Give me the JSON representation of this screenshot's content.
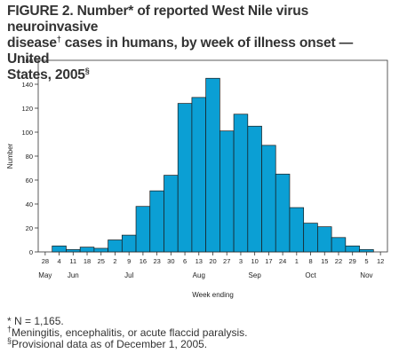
{
  "title": {
    "prefix": "FIGURE 2.",
    "line1": "Number* of reported West Nile virus neuroinvasive",
    "line2a": "disease",
    "line2_mark": "†",
    "line2b": " cases in humans, by week of illness onset — United",
    "line3": "States, 2005",
    "line3_mark": "§"
  },
  "chart_data": {
    "type": "bar",
    "xlabel": "Week ending",
    "ylabel": "Number",
    "ylim": [
      0,
      160
    ],
    "yticks": [
      0,
      20,
      40,
      60,
      80,
      100,
      120,
      140,
      160
    ],
    "categories": [
      "28",
      "4",
      "11",
      "18",
      "25",
      "2",
      "9",
      "16",
      "23",
      "30",
      "6",
      "13",
      "20",
      "27",
      "3",
      "10",
      "17",
      "24",
      "1",
      "8",
      "15",
      "22",
      "29",
      "5",
      "12"
    ],
    "month_labels": [
      {
        "label": "May",
        "index": 0
      },
      {
        "label": "Jun",
        "index": 2
      },
      {
        "label": "Jul",
        "index": 6
      },
      {
        "label": "Aug",
        "index": 11
      },
      {
        "label": "Sep",
        "index": 15
      },
      {
        "label": "Oct",
        "index": 19
      },
      {
        "label": "Nov",
        "index": 23
      }
    ],
    "values": [
      0,
      5,
      2,
      4,
      3,
      10,
      14,
      38,
      51,
      64,
      124,
      129,
      145,
      101,
      115,
      105,
      89,
      65,
      37,
      24,
      21,
      12,
      5,
      2,
      0
    ],
    "bar_color": "#0b9fd4",
    "grid": false
  },
  "footnotes": [
    {
      "mark": "*",
      "text": " N = 1,165."
    },
    {
      "mark": "†",
      "text": "Meningitis, encephalitis, or acute flaccid paralysis."
    },
    {
      "mark": "§",
      "text": "Provisional data as of December 1, 2005."
    }
  ]
}
